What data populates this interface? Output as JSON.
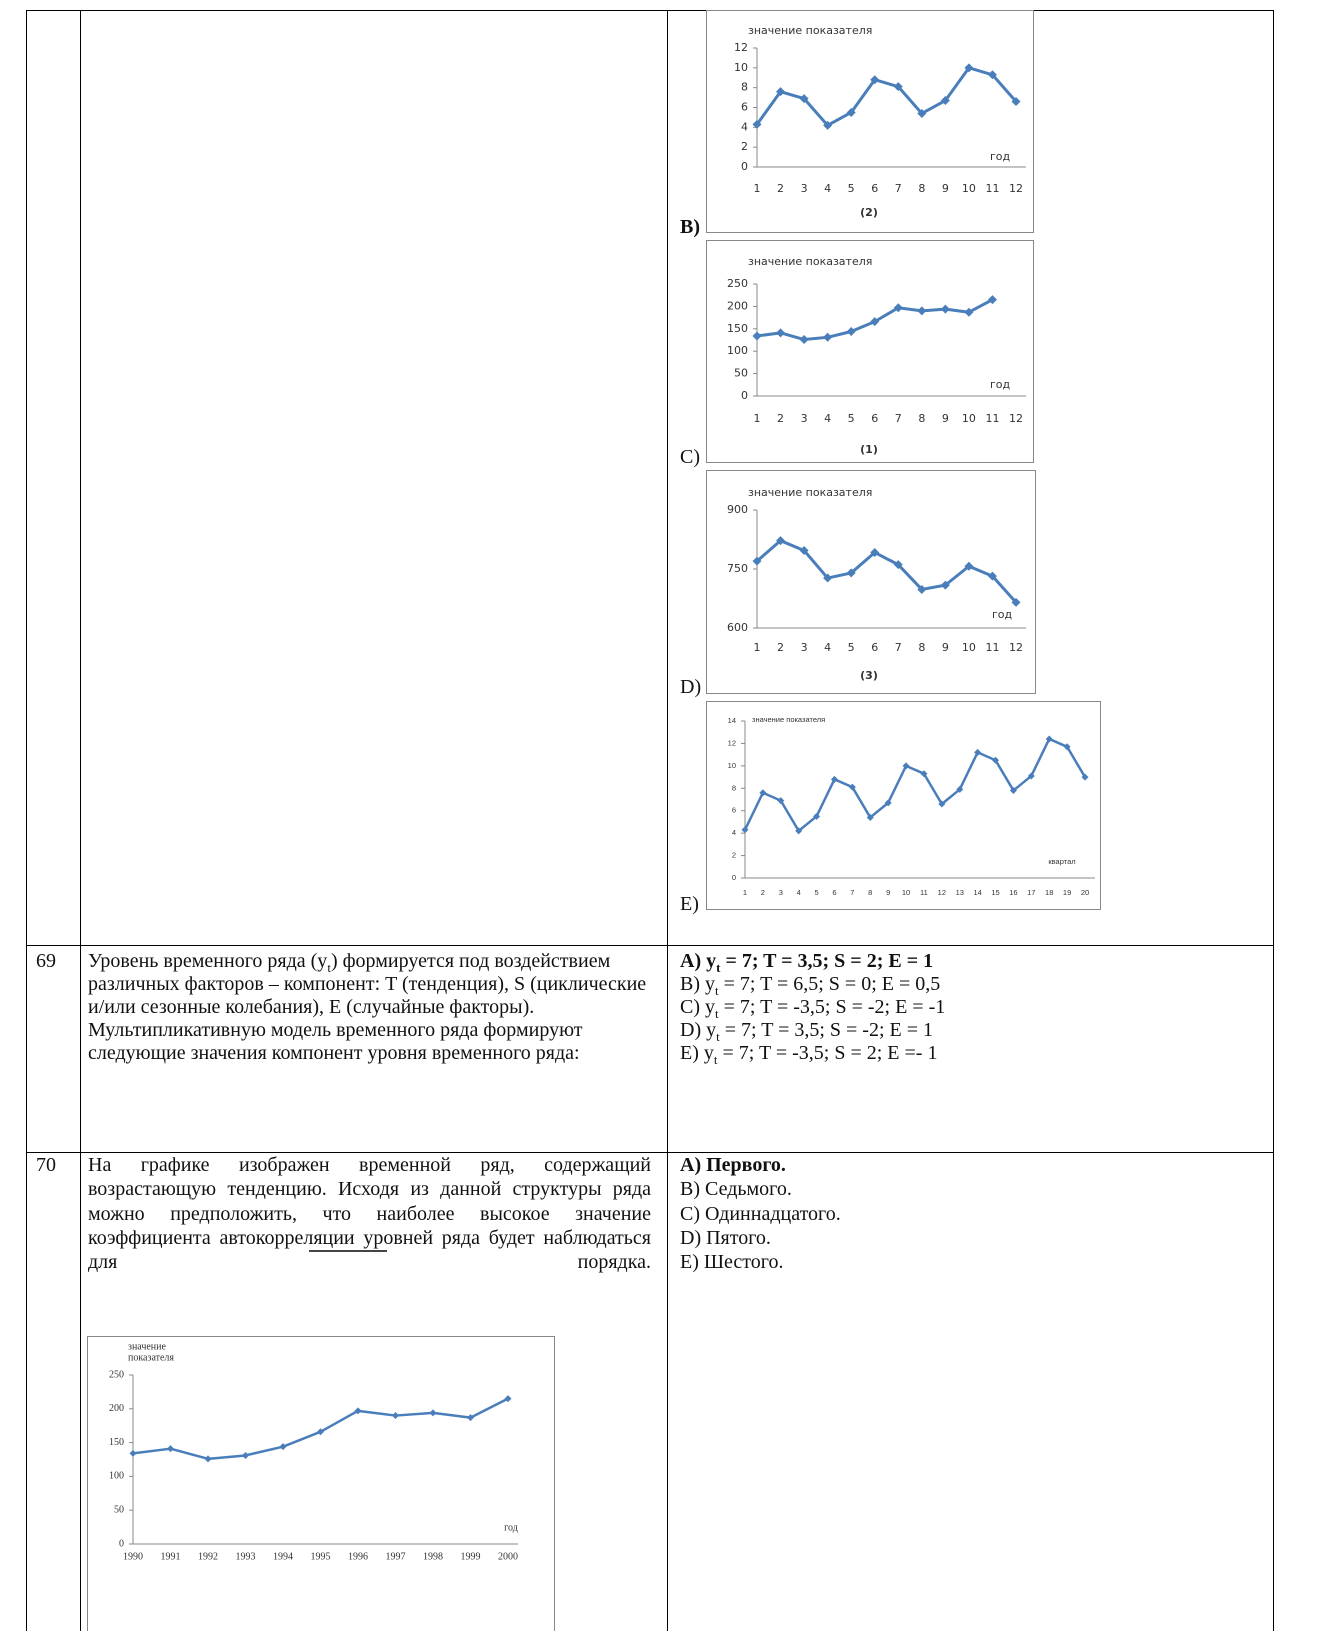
{
  "row_top": {
    "options": [
      "B)",
      "C)",
      "D)",
      "E)"
    ]
  },
  "chart_data": [
    {
      "type": "line",
      "ylabel": "значение показателя",
      "xlabel": "год",
      "caption": "(2)",
      "color": "#4a7ebb",
      "categories": [
        "1",
        "2",
        "3",
        "4",
        "5",
        "6",
        "7",
        "8",
        "9",
        "10",
        "11",
        "12"
      ],
      "values": [
        4.3,
        7.6,
        6.9,
        4.2,
        5.5,
        8.8,
        8.1,
        5.4,
        6.7,
        10.0,
        9.3,
        6.6
      ],
      "ylim": [
        0,
        12
      ],
      "yticks": [
        0,
        2,
        4,
        6,
        8,
        10,
        12
      ]
    },
    {
      "type": "line",
      "ylabel": "значение показателя",
      "xlabel": "год",
      "caption": "(1)",
      "color": "#4a7ebb",
      "categories": [
        "1",
        "2",
        "3",
        "4",
        "5",
        "6",
        "7",
        "8",
        "9",
        "10",
        "11",
        "12"
      ],
      "values": [
        134,
        141,
        126,
        131,
        144,
        166,
        197,
        190,
        194,
        187,
        215,
        null
      ],
      "ylim": [
        0,
        250
      ],
      "yticks": [
        0,
        50,
        100,
        150,
        200,
        250
      ]
    },
    {
      "type": "line",
      "ylabel": "значение показателя",
      "xlabel": "год",
      "caption": "(3)",
      "color": "#4a7ebb",
      "categories": [
        "1",
        "2",
        "3",
        "4",
        "5",
        "6",
        "7",
        "8",
        "9",
        "10",
        "11",
        "12"
      ],
      "values": [
        770,
        822,
        797,
        727,
        740,
        792,
        761,
        698,
        709,
        757,
        732,
        665
      ],
      "ylim": [
        600,
        900
      ],
      "yticks": [
        600,
        750,
        900
      ]
    },
    {
      "type": "line",
      "ylabel": "значение показателя",
      "xlabel": "квартал",
      "color": "#4a7ebb",
      "categories": [
        "1",
        "2",
        "3",
        "4",
        "5",
        "6",
        "7",
        "8",
        "9",
        "10",
        "11",
        "12",
        "13",
        "14",
        "15",
        "16",
        "17",
        "18",
        "19",
        "20"
      ],
      "values": [
        4.3,
        7.6,
        6.9,
        4.2,
        5.5,
        8.8,
        8.1,
        5.4,
        6.7,
        10.0,
        9.3,
        6.6,
        7.9,
        11.2,
        10.5,
        7.8,
        9.1,
        12.4,
        11.7,
        9.0
      ],
      "ylim": [
        0,
        14
      ],
      "yticks": [
        0,
        2,
        4,
        6,
        8,
        10,
        12,
        14
      ]
    },
    {
      "type": "line",
      "ylabel": [
        "значение",
        "показателя"
      ],
      "xlabel": "год",
      "color": "#4a7ebb",
      "categories": [
        "1990",
        "1991",
        "1992",
        "1993",
        "1994",
        "1995",
        "1996",
        "1997",
        "1998",
        "1999",
        "2000"
      ],
      "values": [
        134,
        141,
        126,
        131,
        144,
        166,
        197,
        190,
        194,
        187,
        215
      ],
      "ylim": [
        0,
        250
      ],
      "yticks": [
        0,
        50,
        100,
        150,
        200,
        250
      ]
    }
  ],
  "row_69": {
    "number": "69",
    "question": {
      "pre": "Уровень временного ряда (y",
      "sub": "t",
      "post": ") формируется под воздействием различных факторов – компонент: T (тенденция), S (циклические и/или сезонные колебания), E (случайные факторы). Мультипликативную модель временного ряда формируют следующие значения компонент уровня временного ряда:"
    },
    "options": [
      {
        "pre": "A) y",
        "sub": "t",
        "post": " = 7; T = 3,5; S = 2; E = 1"
      },
      {
        "pre": "B) y",
        "sub": "t",
        "post": " = 7; T = 6,5; S = 0; E = 0,5"
      },
      {
        "pre": "C) y",
        "sub": "t",
        "post": " = 7; T = -3,5; S = -2; E = -1"
      },
      {
        "pre": "D) y",
        "sub": "t",
        "post": " = 7; T = 3,5; S = -2; E = 1"
      },
      {
        "pre": "E) y",
        "sub": "t",
        "post": " = 7; T = -3,5; S = 2; E =- 1"
      }
    ]
  },
  "row_70": {
    "number": "70",
    "question": "На графике изображен временной ряд, содержащий возрастающую тенденцию. Исходя из данной структуры ряда можно предположить, что наиболее высокое значение коэффициента автокорреляции уровней ряда будет наблюдаться для",
    "question_end": "порядка.",
    "options": [
      "A) Первого.",
      "B) Седьмого.",
      "C) Одиннадцатого.",
      "D) Пятого.",
      "E) Шестого."
    ]
  }
}
